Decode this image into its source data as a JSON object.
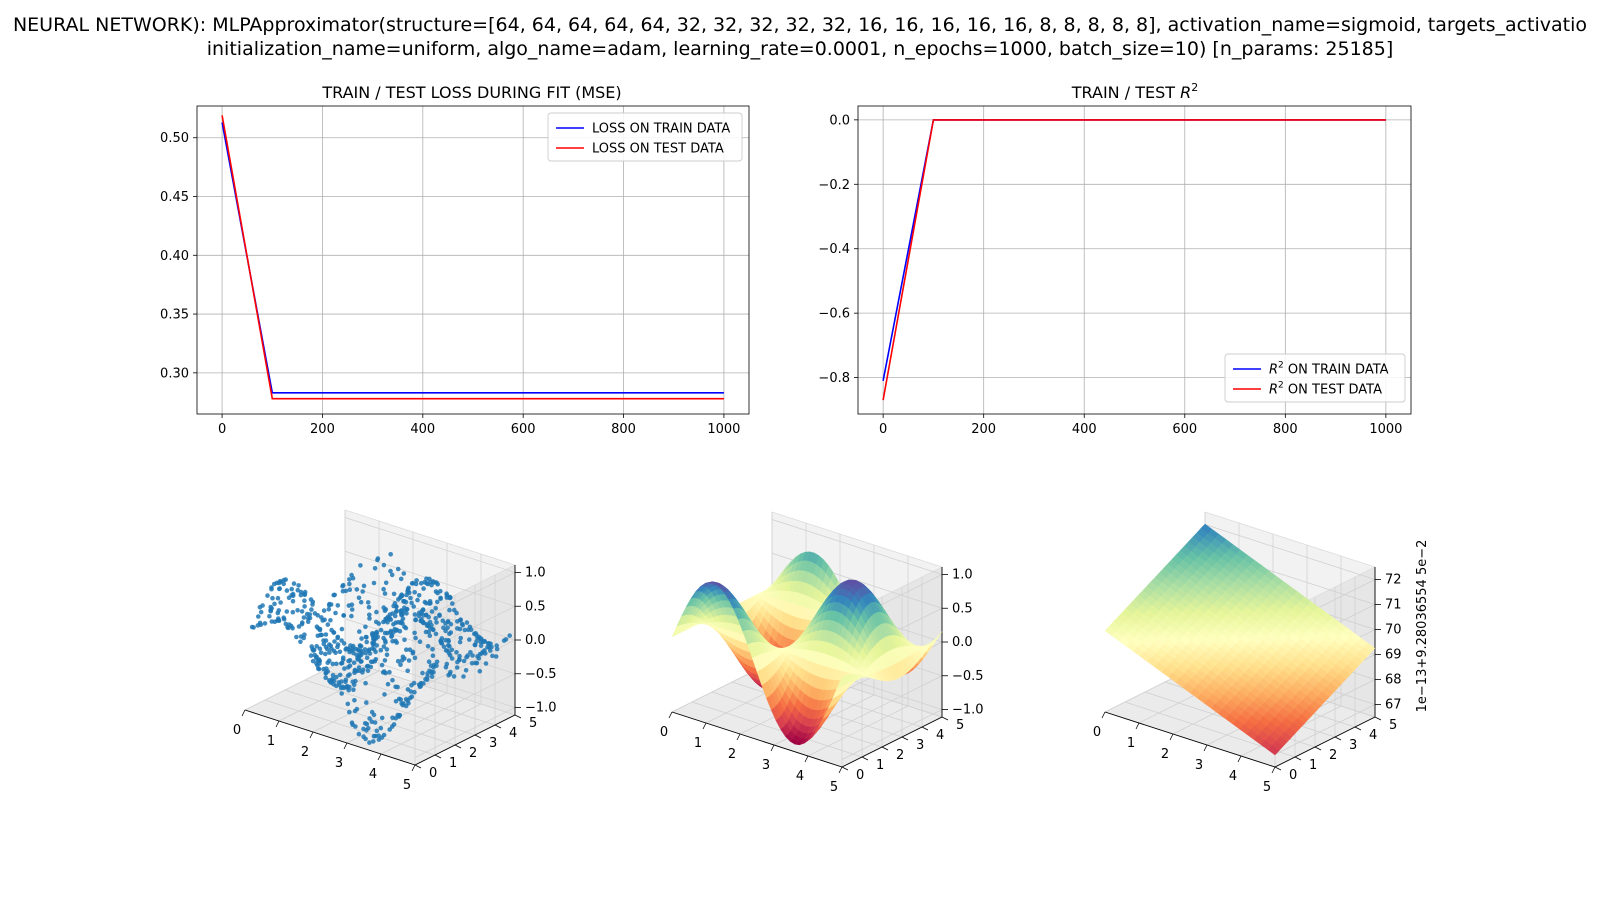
{
  "figure": {
    "title_line1": "NEURAL NETWORK): MLPApproximator(structure=[64, 64, 64, 64, 64, 32, 32, 32, 32, 32, 16, 16, 16, 16, 16, 8, 8, 8, 8, 8], activation_name=sigmoid, targets_activatio",
    "title_line2": "initialization_name=uniform, algo_name=adam, learning_rate=0.0001, n_epochs=1000, batch_size=10) [n_params: 25185]"
  },
  "colors": {
    "train": "#0000ff",
    "test": "#ff0000",
    "scatter": "#1f77b4",
    "grid": "#b0b0b0"
  },
  "chart_data": [
    {
      "type": "line",
      "title": "TRAIN / TEST LOSS DURING FIT (MSE)",
      "xlim": [
        -50,
        1050
      ],
      "ylim": [
        0.265,
        0.527
      ],
      "xticks": [
        0,
        200,
        400,
        600,
        800,
        1000
      ],
      "yticks": [
        0.3,
        0.35,
        0.4,
        0.45,
        0.5
      ],
      "yticklabels": [
        "0.30",
        "0.35",
        "0.40",
        "0.45",
        "0.50"
      ],
      "grid": true,
      "legend": "top-right",
      "x": [
        0,
        100,
        200,
        300,
        400,
        500,
        600,
        700,
        800,
        900,
        1000
      ],
      "series": [
        {
          "name": "LOSS ON TRAIN DATA",
          "color": "#0000ff",
          "values": [
            0.513,
            0.283,
            0.283,
            0.283,
            0.283,
            0.283,
            0.283,
            0.283,
            0.283,
            0.283,
            0.283
          ]
        },
        {
          "name": "LOSS ON TEST DATA",
          "color": "#ff0000",
          "values": [
            0.519,
            0.278,
            0.278,
            0.278,
            0.278,
            0.278,
            0.278,
            0.278,
            0.278,
            0.278,
            0.278
          ]
        }
      ]
    },
    {
      "type": "line",
      "title_prefix": "TRAIN / TEST ",
      "title_math": "R",
      "title_sup": "2",
      "xlim": [
        -50,
        1050
      ],
      "ylim": [
        -0.913,
        0.043
      ],
      "xticks": [
        0,
        200,
        400,
        600,
        800,
        1000
      ],
      "yticks": [
        -0.8,
        -0.6,
        -0.4,
        -0.2,
        0.0
      ],
      "yticklabels": [
        "−0.8",
        "−0.6",
        "−0.4",
        "−0.2",
        "0.0"
      ],
      "grid": true,
      "legend": "bottom-right",
      "x": [
        0,
        100,
        200,
        300,
        400,
        500,
        600,
        700,
        800,
        900,
        1000
      ],
      "series": [
        {
          "name_math": "R",
          "name_sup": "2",
          "name_rest": " ON TRAIN DATA",
          "color": "#0000ff",
          "values": [
            -0.81,
            0.0,
            0.0,
            0.0,
            0.0,
            0.0,
            0.0,
            0.0,
            0.0,
            0.0,
            0.0
          ]
        },
        {
          "name_math": "R",
          "name_sup": "2",
          "name_rest": " ON TEST DATA",
          "color": "#ff0000",
          "values": [
            -0.87,
            0.0,
            0.0,
            0.0,
            0.0,
            0.0,
            0.0,
            0.0,
            0.0,
            0.0,
            0.0
          ]
        }
      ]
    },
    {
      "type": "scatter",
      "projection": "3d",
      "xticks": [
        "0",
        "1",
        "2",
        "3",
        "4",
        "5"
      ],
      "yticks": [
        "0",
        "1",
        "2",
        "3",
        "4",
        "5"
      ],
      "zticks": [
        "−1.0",
        "−0.5",
        "0.0",
        "0.5",
        "1.0"
      ],
      "xlim": [
        0,
        5
      ],
      "ylim": [
        0,
        5
      ],
      "zlim": [
        -1,
        1
      ],
      "n_points": 700
    },
    {
      "type": "surface",
      "projection": "3d",
      "colormap": "Spectral",
      "xticks": [
        "0",
        "1",
        "2",
        "3",
        "4",
        "5"
      ],
      "yticks": [
        "0",
        "1",
        "2",
        "3",
        "4",
        "5"
      ],
      "zticks": [
        "−1.0",
        "−0.5",
        "0.0",
        "0.5",
        "1.0"
      ],
      "xlim": [
        0,
        5
      ],
      "ylim": [
        0,
        5
      ],
      "zlim": [
        -1,
        1
      ]
    },
    {
      "type": "surface",
      "projection": "3d",
      "colormap": "Spectral",
      "xticks": [
        "0",
        "1",
        "2",
        "3",
        "4",
        "5"
      ],
      "yticks": [
        "0",
        "1",
        "2",
        "3",
        "4",
        "5"
      ],
      "zticks": [
        "67",
        "68",
        "69",
        "70",
        "71",
        "72"
      ],
      "zoffset_label": "1e−13+9.28036554 5e−2",
      "xlim": [
        0,
        5
      ],
      "ylim": [
        0,
        5
      ],
      "zlim": [
        66.5,
        72.5
      ]
    }
  ]
}
